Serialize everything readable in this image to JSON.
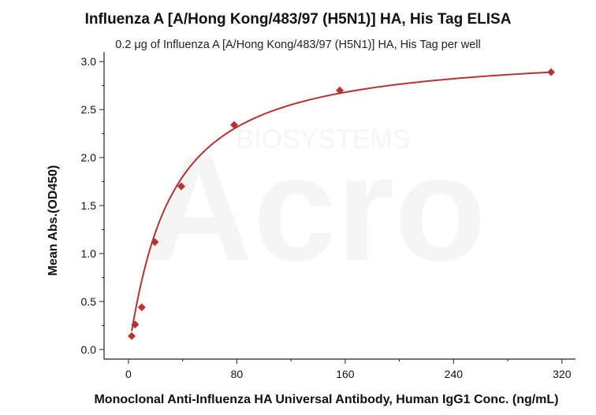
{
  "chart_data": {
    "type": "scatter",
    "title": "Influenza A [A/Hong Kong/483/97 (H5N1)] HA, His Tag ELISA",
    "subtitle": "0.2 μg of Influenza A [A/Hong Kong/483/97 (H5N1)] HA, His Tag per well",
    "xlabel": "Monoclonal Anti-Influenza HA Universal Antibody, Human IgG1 Conc. (ng/mL)",
    "ylabel": "Mean Abs.(OD450)",
    "xlim": [
      -18,
      330
    ],
    "ylim": [
      -0.1,
      3.1
    ],
    "x_ticks": [
      0,
      80,
      160,
      240,
      320
    ],
    "y_ticks": [
      0.0,
      0.5,
      1.0,
      1.5,
      2.0,
      2.5,
      3.0
    ],
    "y_tick_labels": [
      "0.0",
      "0.5",
      "1.0",
      "1.5",
      "2.0",
      "2.5",
      "3.0"
    ],
    "grid": false,
    "series": [
      {
        "x": [
          2.4,
          4.9,
          9.8,
          19.5,
          39,
          78,
          156,
          312
        ],
        "y": [
          0.14,
          0.26,
          0.44,
          1.12,
          1.7,
          2.34,
          2.7,
          2.89
        ],
        "marker": "diamond",
        "fit": "smooth-curve",
        "color": "#b83232"
      }
    ],
    "watermark": [
      "BIOSYSTEMS",
      "Acro"
    ]
  }
}
